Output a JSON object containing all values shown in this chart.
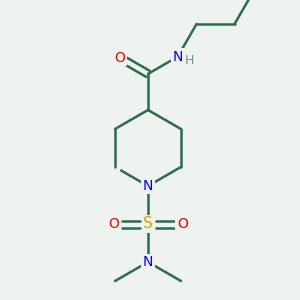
{
  "background_color": "#eff3ef",
  "bond_color": "#2d6b4f",
  "atom_colors": {
    "O": "#ff0000",
    "N": "#0000ff",
    "S": "#ccaa00",
    "H": "#5a9a9a",
    "C": "#2d6b4f"
  },
  "figsize": [
    3.0,
    3.0
  ],
  "dpi": 100
}
